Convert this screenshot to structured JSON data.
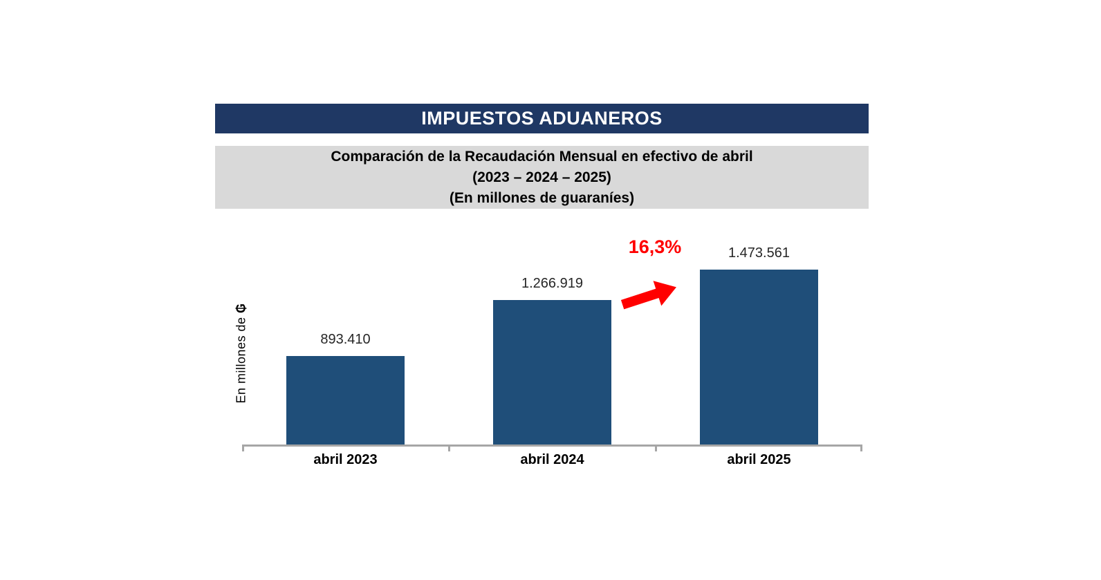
{
  "header": {
    "title": "IMPUESTOS ADUANEROS",
    "bg_color": "#1F3864",
    "text_color": "#FFFFFF"
  },
  "subtitle": {
    "bg_color": "#D9D9D9",
    "lines": [
      "Comparación de la Recaudación Mensual en efectivo de abril",
      "(2023 – 2024 – 2025)",
      "(En millones de guaraníes)"
    ]
  },
  "chart_data": {
    "type": "bar",
    "title": "Comparación de la Recaudación Mensual en efectivo de abril (2023 – 2024 – 2025)",
    "units": "En millones de guaraníes",
    "categories": [
      "abril 2023",
      "abril 2024",
      "abril 2025"
    ],
    "values": [
      893410,
      1266919,
      1473561
    ],
    "value_labels": [
      "893.410",
      "1.266.919",
      "1.473.561"
    ],
    "ylabel": "En millones de ₲",
    "ylabel_prefix": "En millones de ",
    "ylabel_currency": "₲",
    "annotation": {
      "text": "16,3%",
      "color": "#FF0000"
    },
    "bar_color": "#1F4E79",
    "value_label_color": "#262626",
    "axis_color": "#A6A6A6",
    "grid": false,
    "legend": "none",
    "y_axis_ticks": "none visible"
  }
}
